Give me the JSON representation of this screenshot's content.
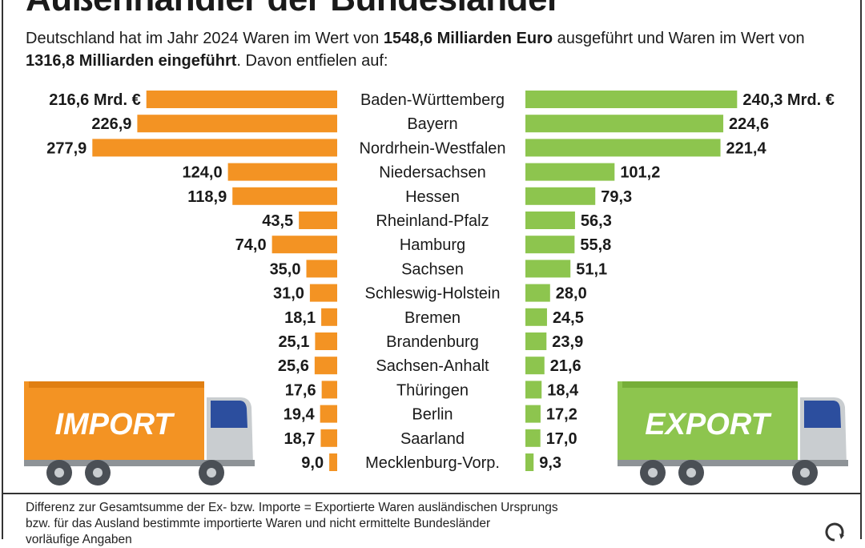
{
  "title": "Außenhändler der Bundesländer",
  "intro": {
    "part1": "Deutschland hat im Jahr 2024 Waren im Wert von ",
    "export_total": "1548,6 Milliarden Euro",
    "part2": " ausgeführt und Waren im Wert von ",
    "import_total": "1316,8 Milliarden eingeführt",
    "part3": ". Davon entfielen auf:"
  },
  "trucks": {
    "import_label": "IMPORT",
    "export_label": "EXPORT"
  },
  "colors": {
    "import": "#F39323",
    "export": "#8DC54E",
    "truck_cab": "#C9CDD0",
    "truck_window": "#2C4E9E",
    "wheel": "#4A4F55"
  },
  "chart_data": {
    "type": "bar",
    "categories": [
      "Baden-Württemberg",
      "Bayern",
      "Nordrhein-Westfalen",
      "Niedersachsen",
      "Hessen",
      "Rheinland-Pfalz",
      "Hamburg",
      "Sachsen",
      "Schleswig-Holstein",
      "Bremen",
      "Brandenburg",
      "Sachsen-Anhalt",
      "Thüringen",
      "Berlin",
      "Saarland",
      "Mecklenburg-Vorp."
    ],
    "series": [
      {
        "values": [
          216.6,
          226.9,
          277.9,
          124.0,
          118.9,
          43.5,
          74.0,
          35.0,
          31.0,
          18.1,
          25.1,
          25.6,
          17.6,
          19.4,
          18.7,
          9.0
        ],
        "labels": [
          "216,6 Mrd. €",
          "226,9",
          "277,9",
          "124,0",
          "118,9",
          "43,5",
          "74,0",
          "35,0",
          "31,0",
          "18,1",
          "25,1",
          "25,6",
          "17,6",
          "19,4",
          "18,7",
          "9,0"
        ]
      },
      {
        "values": [
          240.3,
          224.6,
          221.4,
          101.2,
          79.3,
          56.3,
          55.8,
          51.1,
          28.0,
          24.5,
          23.9,
          21.6,
          18.4,
          17.2,
          17.0,
          9.3
        ],
        "labels": [
          "240,3 Mrd. €",
          "224,6",
          "221,4",
          "101,2",
          "79,3",
          "56,3",
          "55,8",
          "51,1",
          "28,0",
          "24,5",
          "23,9",
          "21,6",
          "18,4",
          "17,2",
          "17,0",
          "9,3"
        ]
      }
    ]
  },
  "footnote": [
    "Differenz zur Gesamtsumme der Ex- bzw. Importe = Exportierte Waren ausländischen Ursprungs",
    "bzw. für das Ausland bestimmte importierte Waren und nicht ermittelte Bundesländer",
    "vorläufige Angaben"
  ]
}
